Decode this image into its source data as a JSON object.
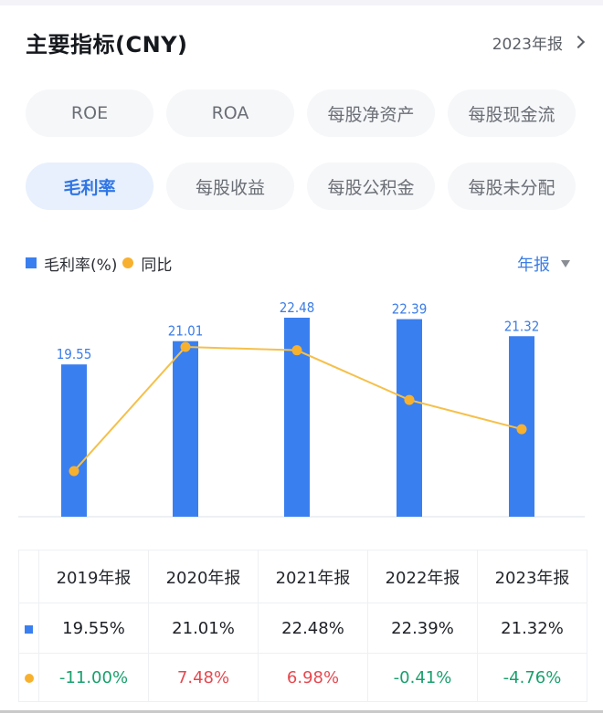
{
  "header": {
    "title": "主要指标(CNY)",
    "period_label": "2023年报"
  },
  "chips": [
    {
      "label": "ROE",
      "active": false
    },
    {
      "label": "ROA",
      "active": false
    },
    {
      "label": "每股净资产",
      "active": false
    },
    {
      "label": "每股现金流",
      "active": false
    },
    {
      "label": "毛利率",
      "active": true
    },
    {
      "label": "每股收益",
      "active": false
    },
    {
      "label": "每股公积金",
      "active": false
    },
    {
      "label": "每股未分配",
      "active": false
    }
  ],
  "legend": {
    "bar_label": "毛利率(%)",
    "line_label": "同比"
  },
  "dropdown": {
    "selected": "年报"
  },
  "colors": {
    "bar": "#3a7ff0",
    "line": "#f7b12f",
    "accent": "#2f75e5",
    "positive": "#e5494f",
    "negative": "#1aa06d"
  },
  "chart_data": {
    "type": "bar",
    "title": "毛利率",
    "categories": [
      "2019年报",
      "2020年报",
      "2021年报",
      "2022年报",
      "2023年报"
    ],
    "series": [
      {
        "name": "毛利率(%)",
        "type": "bar",
        "values": [
          19.55,
          21.01,
          22.48,
          22.39,
          21.32
        ],
        "labels": [
          "19.55",
          "21.01",
          "22.48",
          "22.39",
          "21.32"
        ]
      },
      {
        "name": "同比",
        "type": "line",
        "values": [
          -11.0,
          7.48,
          6.98,
          -0.41,
          -4.76
        ]
      }
    ],
    "xlabel": "",
    "ylabel": "",
    "grid": false,
    "legend_position": "top-left"
  },
  "table": {
    "headers": [
      "2019年报",
      "2020年报",
      "2021年报",
      "2022年报",
      "2023年报"
    ],
    "values": [
      "19.55%",
      "21.01%",
      "22.48%",
      "22.39%",
      "21.32%"
    ],
    "yoy": [
      {
        "text": "-11.00%",
        "sign": "neg"
      },
      {
        "text": "7.48%",
        "sign": "pos"
      },
      {
        "text": "6.98%",
        "sign": "pos"
      },
      {
        "text": "-0.41%",
        "sign": "neg"
      },
      {
        "text": "-4.76%",
        "sign": "neg"
      }
    ]
  }
}
